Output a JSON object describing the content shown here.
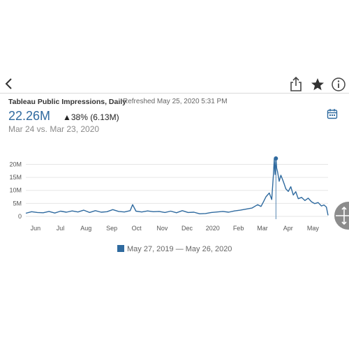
{
  "toolbar": {
    "icons": [
      "chevron-left-icon",
      "share-icon",
      "star-icon",
      "info-icon",
      "calendar-icon",
      "move-icon"
    ]
  },
  "header": {
    "title": "Tableau Public Impressions, Daily",
    "refreshed": "Refreshed May 25, 2020 5:31 PM"
  },
  "kpi": {
    "value": "22.26M",
    "change": "▲38% (6.13M)",
    "comparison": "Mar 24 vs. Mar 23, 2020"
  },
  "legend": {
    "label": "May 27, 2019 — May 26, 2020"
  },
  "colors": {
    "accent": "#2f6a9f",
    "grid": "#e6e6e6"
  },
  "chart_data": {
    "type": "line",
    "title": "",
    "xlabel": "",
    "ylabel": "",
    "x_ticks": [
      "Jun",
      "Jul",
      "Aug",
      "Sep",
      "Oct",
      "Nov",
      "Dec",
      "2020",
      "Feb",
      "Mar",
      "Apr",
      "May"
    ],
    "y_ticks": [
      "20M",
      "15M",
      "10M",
      "5M",
      "0"
    ],
    "ylim": [
      0,
      22
    ],
    "grid": true,
    "highlight": {
      "x": "2020-03-24",
      "y": 22.26
    },
    "series": [
      {
        "x": [
          "2019-05-27",
          "2019-06-03",
          "2019-06-10",
          "2019-06-17",
          "2019-06-24",
          "2019-07-01",
          "2019-07-08",
          "2019-07-15",
          "2019-07-22",
          "2019-07-29",
          "2019-08-05",
          "2019-08-12",
          "2019-08-19",
          "2019-08-26",
          "2019-09-02",
          "2019-09-09",
          "2019-09-16",
          "2019-09-23",
          "2019-09-30",
          "2019-10-03",
          "2019-10-07",
          "2019-10-14",
          "2019-10-21",
          "2019-10-28",
          "2019-11-04",
          "2019-11-11",
          "2019-11-18",
          "2019-11-25",
          "2019-12-02",
          "2019-12-09",
          "2019-12-16",
          "2019-12-23",
          "2019-12-30",
          "2020-01-06",
          "2020-01-13",
          "2020-01-20",
          "2020-01-27",
          "2020-02-03",
          "2020-02-10",
          "2020-02-17",
          "2020-02-24",
          "2020-03-02",
          "2020-03-06",
          "2020-03-09",
          "2020-03-12",
          "2020-03-16",
          "2020-03-19",
          "2020-03-21",
          "2020-03-22",
          "2020-03-23",
          "2020-03-24",
          "2020-03-25",
          "2020-03-26",
          "2020-03-28",
          "2020-03-30",
          "2020-04-01",
          "2020-04-03",
          "2020-04-05",
          "2020-04-08",
          "2020-04-11",
          "2020-04-14",
          "2020-04-17",
          "2020-04-20",
          "2020-04-24",
          "2020-04-28",
          "2020-05-02",
          "2020-05-06",
          "2020-05-10",
          "2020-05-14",
          "2020-05-18",
          "2020-05-21",
          "2020-05-24",
          "2020-05-26"
        ],
        "values": [
          1.2,
          1.8,
          1.5,
          1.4,
          1.9,
          1.3,
          2.0,
          1.6,
          2.1,
          1.7,
          2.4,
          1.5,
          2.2,
          1.6,
          1.8,
          2.6,
          1.9,
          1.7,
          2.2,
          4.5,
          2.0,
          1.7,
          2.1,
          1.8,
          1.9,
          1.5,
          2.0,
          1.4,
          2.2,
          1.5,
          1.6,
          1.0,
          1.1,
          1.5,
          1.7,
          1.9,
          1.6,
          2.1,
          2.4,
          2.8,
          3.2,
          4.5,
          3.8,
          5.6,
          7.5,
          9.0,
          6.5,
          16.0,
          22.0,
          16.1,
          22.26,
          18.5,
          17.2,
          13.5,
          15.8,
          14.2,
          12.5,
          10.6,
          9.6,
          11.4,
          8.2,
          9.5,
          6.8,
          7.3,
          6.1,
          7.0,
          5.6,
          4.9,
          5.3,
          4.0,
          4.4,
          3.6,
          0.4
        ]
      }
    ]
  }
}
